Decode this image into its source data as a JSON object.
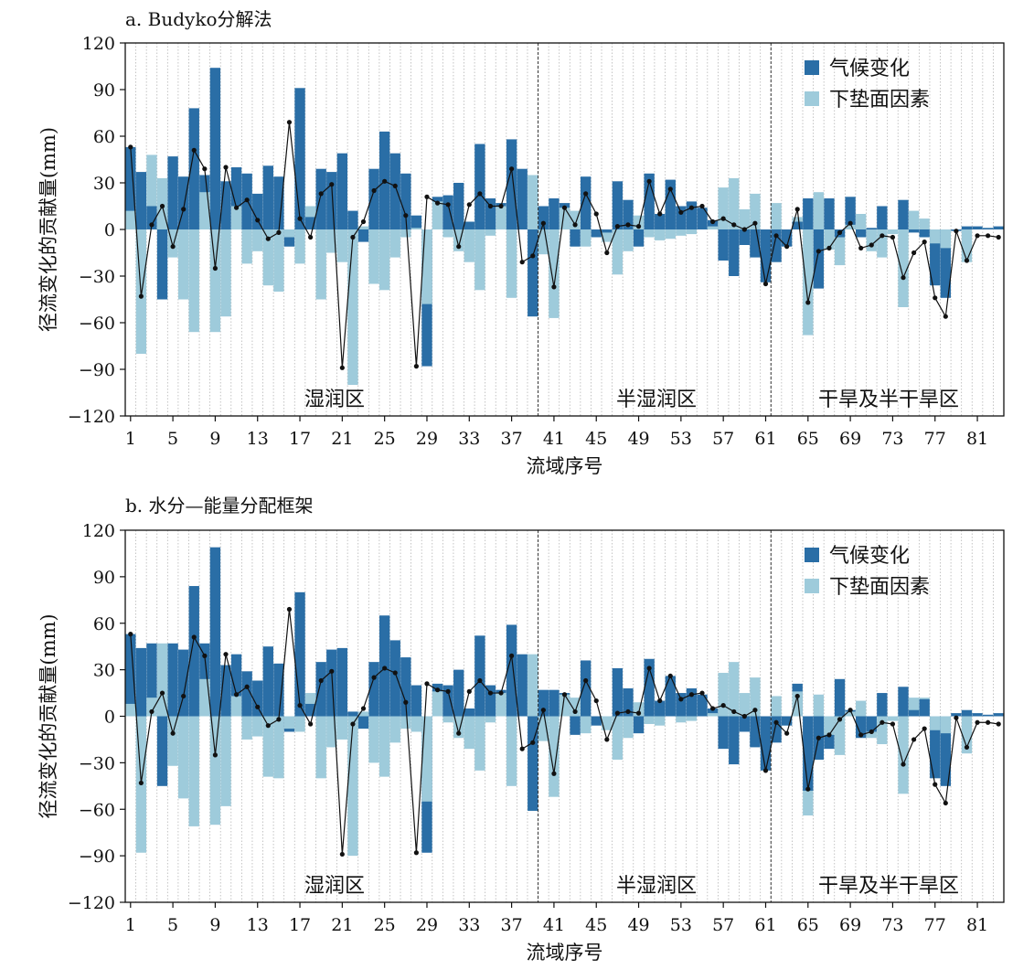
{
  "chart_data": [
    {
      "type": "bar",
      "title": "a. Budyko分解法",
      "xlabel": "流域序号",
      "ylabel": "径流变化的贡献量(mm)",
      "ylim": [
        -120,
        120
      ],
      "yticks": [
        "120",
        "90",
        "60",
        "30",
        "0",
        "−30",
        "−60",
        "−90",
        "−120"
      ],
      "xticks": [
        "1",
        "5",
        "9",
        "13",
        "17",
        "21",
        "25",
        "29",
        "33",
        "37",
        "41",
        "45",
        "49",
        "53",
        "57",
        "61",
        "65",
        "69",
        "73",
        "77",
        "81"
      ],
      "regions": [
        {
          "label": "湿润区",
          "range": [
            1,
            39
          ]
        },
        {
          "label": "半湿润区",
          "range": [
            40,
            61
          ]
        },
        {
          "label": "干旱及半干旱区",
          "range": [
            62,
            83
          ]
        }
      ],
      "legend": [
        "气候变化",
        "下垫面因素"
      ],
      "legend_position": "top-right",
      "colors": {
        "climate": "#2a6ea6",
        "underlying": "#9ecbdb",
        "total": "#111111"
      },
      "series": [
        {
          "name": "气候变化",
          "values": [
            53,
            37,
            15,
            -45,
            47,
            34,
            78,
            35,
            104,
            31,
            40,
            36,
            23,
            41,
            34,
            -11,
            91,
            8,
            39,
            37,
            49,
            12,
            -8,
            39,
            63,
            49,
            36,
            9,
            -88,
            21,
            22,
            30,
            5,
            55,
            20,
            17,
            58,
            39,
            -56,
            15,
            20,
            17,
            -11,
            34,
            -5,
            -2,
            31,
            19,
            -11,
            36,
            10,
            32,
            15,
            18,
            14,
            6,
            -20,
            -30,
            -10,
            -18,
            -34,
            -21,
            -11,
            5,
            20,
            -38,
            20,
            -5,
            21,
            -5,
            1,
            15,
            0,
            19,
            -2,
            -5,
            -36,
            -44,
            -1,
            2,
            2,
            1,
            2
          ]
        },
        {
          "name": "下垫面因素",
          "values": [
            12,
            -80,
            48,
            33,
            -18,
            -45,
            -66,
            24,
            -66,
            -56,
            15,
            -22,
            -14,
            -36,
            -40,
            -5,
            -22,
            15,
            -45,
            -15,
            -21,
            -100,
            2,
            -35,
            -39,
            -18,
            -5,
            1,
            -48,
            18,
            -5,
            -14,
            -21,
            -39,
            -4,
            15,
            -44,
            0,
            35,
            -16,
            -57,
            14,
            12,
            -11,
            0,
            -8,
            -29,
            -14,
            9,
            -5,
            -7,
            -6,
            -4,
            -3,
            0,
            2,
            27,
            33,
            13,
            23,
            0,
            17,
            0,
            8,
            -68,
            24,
            -13,
            -23,
            3,
            10,
            -14,
            -18,
            -3,
            -50,
            12,
            7,
            -9,
            -12,
            0,
            -21,
            0,
            0,
            0
          ]
        },
        {
          "name": "",
          "type": "line",
          "values": [
            53,
            -43,
            3,
            15,
            -11,
            13,
            51,
            39,
            -25,
            40,
            14,
            19,
            6,
            -6,
            -2,
            69,
            7,
            -5,
            23,
            29,
            -89,
            -5,
            5,
            25,
            31,
            28,
            9,
            -88,
            21,
            17,
            16,
            -11,
            16,
            23,
            15,
            15,
            39,
            -21,
            -17,
            4,
            -37,
            14,
            3,
            23,
            10,
            -15,
            2,
            3,
            2,
            31,
            10,
            26,
            11,
            14,
            15,
            5,
            7,
            3,
            0,
            4,
            -35,
            -4,
            -11,
            13,
            -47,
            -14,
            -12,
            -2,
            4,
            -12,
            -10,
            -4,
            -5,
            -31,
            -15,
            -8,
            -44,
            -56,
            -1,
            -20,
            -4,
            -4,
            -5
          ]
        }
      ]
    },
    {
      "type": "bar",
      "title": "b. 水分—能量分配框架",
      "xlabel": "流域序号",
      "ylabel": "径流变化的贡献量(mm)",
      "ylim": [
        -120,
        120
      ],
      "yticks": [
        "120",
        "90",
        "60",
        "30",
        "0",
        "−30",
        "−60",
        "−90",
        "−120"
      ],
      "xticks": [
        "1",
        "5",
        "9",
        "13",
        "17",
        "21",
        "25",
        "29",
        "33",
        "37",
        "41",
        "45",
        "49",
        "53",
        "57",
        "61",
        "65",
        "69",
        "73",
        "77",
        "81"
      ],
      "regions": [
        {
          "label": "湿润区",
          "range": [
            1,
            39
          ]
        },
        {
          "label": "半湿润区",
          "range": [
            40,
            61
          ]
        },
        {
          "label": "干旱及半干旱区",
          "range": [
            62,
            83
          ]
        }
      ],
      "legend": [
        "气候变化",
        "下垫面因素"
      ],
      "legend_position": "top-right",
      "colors": {
        "climate": "#2a6ea6",
        "underlying": "#9ecbdb",
        "total": "#111111"
      },
      "series": [
        {
          "name": "气候变化",
          "values": [
            53,
            44,
            47,
            -45,
            47,
            43,
            84,
            47,
            109,
            33,
            40,
            29,
            23,
            45,
            34,
            -10,
            80,
            8,
            35,
            43,
            44,
            3,
            -8,
            35,
            65,
            49,
            38,
            20,
            -88,
            21,
            20,
            30,
            5,
            52,
            20,
            17,
            59,
            40,
            -61,
            17,
            17,
            15,
            -12,
            36,
            -6,
            0,
            31,
            18,
            -11,
            37,
            10,
            26,
            15,
            18,
            14,
            5,
            -21,
            -31,
            -10,
            -20,
            -35,
            -17,
            -6,
            21,
            -48,
            -28,
            -21,
            24,
            4,
            -14,
            -10,
            15,
            0,
            19,
            4,
            11,
            -40,
            -45,
            2,
            4,
            2,
            1,
            2
          ]
        },
        {
          "name": "下垫面因素",
          "values": [
            8,
            -88,
            12,
            47,
            -32,
            -53,
            -71,
            24,
            -70,
            -58,
            13,
            -15,
            -13,
            -39,
            -40,
            -8,
            -10,
            15,
            -40,
            -20,
            -15,
            -90,
            3,
            -30,
            -39,
            -17,
            -8,
            -10,
            -55,
            16,
            -4,
            -14,
            -21,
            -35,
            -4,
            15,
            -45,
            0,
            40,
            -16,
            -52,
            14,
            12,
            -11,
            0,
            -9,
            -28,
            -14,
            9,
            -5,
            -6,
            0,
            -4,
            -3,
            0,
            2,
            28,
            35,
            15,
            25,
            0,
            13,
            0,
            16,
            -64,
            14,
            -12,
            -25,
            3,
            10,
            -14,
            -18,
            -3,
            -50,
            12,
            12,
            -9,
            -11,
            0,
            -24,
            0,
            0,
            0
          ]
        },
        {
          "name": "",
          "type": "line",
          "values": [
            53,
            -43,
            3,
            15,
            -11,
            13,
            51,
            39,
            -25,
            40,
            14,
            19,
            6,
            -6,
            -2,
            69,
            7,
            -5,
            23,
            29,
            -89,
            -5,
            5,
            25,
            31,
            28,
            9,
            -88,
            21,
            17,
            16,
            -11,
            16,
            23,
            15,
            15,
            39,
            -21,
            -17,
            4,
            -37,
            14,
            3,
            23,
            10,
            -15,
            2,
            3,
            2,
            31,
            10,
            26,
            11,
            14,
            15,
            5,
            7,
            3,
            0,
            4,
            -35,
            -4,
            -11,
            13,
            -47,
            -14,
            -12,
            -2,
            4,
            -12,
            -10,
            -4,
            -5,
            -31,
            -15,
            -8,
            -44,
            -56,
            -1,
            -20,
            -4,
            -4,
            -5
          ]
        }
      ]
    }
  ]
}
